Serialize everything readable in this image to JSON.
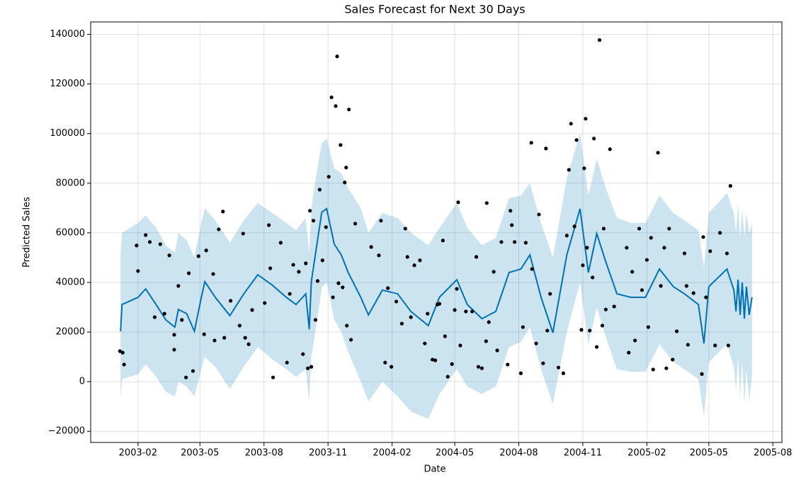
{
  "chart_data": {
    "type": "line",
    "title": "Sales Forecast for Next 30 Days",
    "xlabel": "Date",
    "ylabel": "Predicted Sales",
    "xlim": [
      "2002-11-25",
      "2005-08-14"
    ],
    "xticks": [
      {
        "value": "2003-02-01",
        "label": "2003-02"
      },
      {
        "value": "2003-05-01",
        "label": "2003-05"
      },
      {
        "value": "2003-08-01",
        "label": "2003-08"
      },
      {
        "value": "2003-11-01",
        "label": "2003-11"
      },
      {
        "value": "2004-02-01",
        "label": "2004-02"
      },
      {
        "value": "2004-05-01",
        "label": "2004-05"
      },
      {
        "value": "2004-08-01",
        "label": "2004-08"
      },
      {
        "value": "2004-11-01",
        "label": "2004-11"
      },
      {
        "value": "2005-02-01",
        "label": "2005-02"
      },
      {
        "value": "2005-05-01",
        "label": "2005-05"
      },
      {
        "value": "2005-08-01",
        "label": "2005-08"
      }
    ],
    "ylim": [
      -24500,
      145000
    ],
    "yticks": [
      {
        "value": -20000,
        "label": "−20000"
      },
      0,
      20000,
      40000,
      60000,
      80000,
      100000,
      120000,
      140000
    ],
    "grid": true,
    "x": [
      "2003-01-07",
      "2003-01-09",
      "2003-02-01",
      "2003-02-12",
      "2003-02-27",
      "2003-03-13",
      "2003-03-26",
      "2003-03-31",
      "2003-04-12",
      "2003-04-23",
      "2003-05-03",
      "2003-05-08",
      "2003-05-23",
      "2003-06-13",
      "2003-07-03",
      "2003-07-23",
      "2003-08-13",
      "2003-09-02",
      "2003-09-16",
      "2003-09-30",
      "2003-10-05",
      "2003-10-08",
      "2003-10-16",
      "2003-10-23",
      "2003-10-30",
      "2003-11-10",
      "2003-11-20",
      "2003-11-30",
      "2003-12-18",
      "2003-12-29",
      "2004-01-18",
      "2004-02-09",
      "2004-02-28",
      "2004-03-24",
      "2004-04-09",
      "2004-05-04",
      "2004-05-19",
      "2004-06-09",
      "2004-06-29",
      "2004-07-18",
      "2004-08-04",
      "2004-08-17",
      "2004-09-02",
      "2004-09-19",
      "2004-10-09",
      "2004-10-28",
      "2004-11-09",
      "2004-11-21",
      "2004-12-04",
      "2004-12-20",
      "2005-01-09",
      "2005-01-30",
      "2005-02-19",
      "2005-03-11",
      "2005-03-27",
      "2005-04-16",
      "2005-04-24",
      "2005-05-01",
      "2005-05-27",
      "2005-06-06",
      "2005-06-09",
      "2005-06-12",
      "2005-06-15",
      "2005-06-18",
      "2005-06-21",
      "2005-06-24",
      "2005-06-28",
      "2005-07-02"
    ],
    "series": [
      {
        "color": "#0072B2",
        "values": [
          20300,
          31100,
          34000,
          37400,
          31100,
          24900,
          22000,
          29100,
          27400,
          20300,
          34000,
          40300,
          34000,
          26600,
          35400,
          43100,
          38900,
          34000,
          31100,
          35400,
          21100,
          40300,
          55400,
          68300,
          69700,
          55400,
          51100,
          44000,
          34000,
          26900,
          36900,
          35400,
          28300,
          22600,
          34000,
          41100,
          31100,
          25400,
          28300,
          44000,
          45400,
          51100,
          34000,
          19700,
          51100,
          69700,
          44000,
          59700,
          48300,
          35400,
          34000,
          34000,
          45400,
          38300,
          35400,
          31100,
          15400,
          38300,
          45400,
          36900,
          28300,
          41100,
          26900,
          40000,
          25400,
          38300,
          26900,
          34000
        ]
      }
    ],
    "band": {
      "color": "#0072B2",
      "lower": [
        -7000,
        1000,
        3000,
        7000,
        2000,
        -4000,
        -6000,
        0,
        -2000,
        -6000,
        5000,
        10000,
        6000,
        -3000,
        6000,
        14000,
        9000,
        5000,
        2000,
        5000,
        -8000,
        10000,
        24000,
        38000,
        40000,
        25000,
        20000,
        12000,
        0,
        -8000,
        0,
        -6000,
        -12000,
        -15000,
        -5000,
        5000,
        -2000,
        -5000,
        -2000,
        14000,
        16000,
        22000,
        5000,
        -9000,
        20000,
        40000,
        15000,
        30000,
        18000,
        5000,
        4000,
        4000,
        15000,
        8000,
        5000,
        1000,
        -14000,
        8000,
        15000,
        6000,
        -4000,
        10000,
        -6000,
        8000,
        -9000,
        5000,
        -8000,
        2000
      ],
      "upper": [
        52000,
        60000,
        64000,
        67000,
        62000,
        55000,
        52000,
        60000,
        57000,
        50000,
        64000,
        70000,
        65000,
        56000,
        65000,
        72000,
        68000,
        64000,
        61000,
        66000,
        52000,
        70000,
        85000,
        96000,
        98000,
        86000,
        84000,
        78000,
        70000,
        60000,
        68000,
        66000,
        60000,
        55000,
        62000,
        72000,
        62000,
        55000,
        58000,
        74000,
        75000,
        80000,
        64000,
        50000,
        82000,
        100000,
        75000,
        90000,
        78000,
        66000,
        64000,
        64000,
        75000,
        68000,
        65000,
        61000,
        46000,
        68000,
        76000,
        68000,
        60000,
        72000,
        58000,
        70000,
        58000,
        68000,
        60000,
        64000
      ]
    },
    "scatter": {
      "color": "#000000",
      "x": [
        "2003-01-06",
        "2003-01-10",
        "2003-01-12",
        "2003-01-30",
        "2003-02-01",
        "2003-02-12",
        "2003-02-18",
        "2003-02-25",
        "2003-03-05",
        "2003-03-11",
        "2003-03-18",
        "2003-03-25",
        "2003-03-25",
        "2003-03-31",
        "2003-04-05",
        "2003-04-11",
        "2003-04-15",
        "2003-04-21",
        "2003-04-29",
        "2003-05-07",
        "2003-05-10",
        "2003-05-20",
        "2003-05-22",
        "2003-05-28",
        "2003-06-03",
        "2003-06-05",
        "2003-06-14",
        "2003-06-27",
        "2003-07-02",
        "2003-07-05",
        "2003-07-10",
        "2003-07-15",
        "2003-08-02",
        "2003-08-08",
        "2003-08-10",
        "2003-08-14",
        "2003-08-25",
        "2003-09-03",
        "2003-09-07",
        "2003-09-12",
        "2003-09-20",
        "2003-09-26",
        "2003-09-30",
        "2003-10-03",
        "2003-10-06",
        "2003-10-08",
        "2003-10-11",
        "2003-10-14",
        "2003-10-17",
        "2003-10-20",
        "2003-10-24",
        "2003-10-29",
        "2003-11-02",
        "2003-11-06",
        "2003-11-08",
        "2003-11-12",
        "2003-11-14",
        "2003-11-16",
        "2003-11-19",
        "2003-11-22",
        "2003-11-25",
        "2003-11-27",
        "2003-11-28",
        "2003-12-01",
        "2003-12-04",
        "2003-12-10",
        "2004-01-02",
        "2004-01-13",
        "2004-01-16",
        "2004-01-22",
        "2004-01-26",
        "2004-01-31",
        "2004-02-07",
        "2004-02-15",
        "2004-02-20",
        "2004-02-23",
        "2004-02-28",
        "2004-03-04",
        "2004-03-12",
        "2004-03-19",
        "2004-03-23",
        "2004-03-30",
        "2004-04-03",
        "2004-04-06",
        "2004-04-09",
        "2004-04-14",
        "2004-04-17",
        "2004-04-21",
        "2004-04-27",
        "2004-05-01",
        "2004-05-04",
        "2004-05-06",
        "2004-05-09",
        "2004-05-17",
        "2004-05-26",
        "2004-06-01",
        "2004-06-04",
        "2004-06-09",
        "2004-06-15",
        "2004-06-16",
        "2004-06-19",
        "2004-06-26",
        "2004-07-01",
        "2004-07-07",
        "2004-07-16",
        "2004-07-20",
        "2004-07-22",
        "2004-07-26",
        "2004-08-04",
        "2004-08-07",
        "2004-08-11",
        "2004-08-19",
        "2004-08-20",
        "2004-08-26",
        "2004-08-30",
        "2004-09-05",
        "2004-09-09",
        "2004-09-11",
        "2004-09-15",
        "2004-09-27",
        "2004-10-04",
        "2004-10-09",
        "2004-10-12",
        "2004-10-15",
        "2004-10-20",
        "2004-10-23",
        "2004-10-30",
        "2004-11-01",
        "2004-11-03",
        "2004-11-05",
        "2004-11-07",
        "2004-11-11",
        "2004-11-15",
        "2004-11-17",
        "2004-11-21",
        "2004-11-25",
        "2004-11-29",
        "2004-12-01",
        "2004-12-04",
        "2004-12-10",
        "2004-12-16",
        "2005-01-03",
        "2005-01-06",
        "2005-01-11",
        "2005-01-15",
        "2005-01-21",
        "2005-01-25",
        "2005-02-01",
        "2005-02-03",
        "2005-02-07",
        "2005-02-10",
        "2005-02-17",
        "2005-02-21",
        "2005-02-26",
        "2005-03-01",
        "2005-03-05",
        "2005-03-10",
        "2005-03-16",
        "2005-03-27",
        "2005-03-30",
        "2005-04-01",
        "2005-04-09",
        "2005-04-21",
        "2005-04-23",
        "2005-04-27",
        "2005-05-03",
        "2005-05-10",
        "2005-05-17",
        "2005-05-27",
        "2005-05-29",
        "2005-06-01"
      ],
      "values": [
        12300,
        11700,
        6900,
        54900,
        44600,
        59100,
        56300,
        26000,
        55400,
        27400,
        50900,
        18900,
        12900,
        38600,
        24900,
        1700,
        43700,
        4300,
        50600,
        19100,
        52900,
        43400,
        16600,
        61400,
        68600,
        17700,
        32600,
        22600,
        59700,
        17700,
        15100,
        28900,
        31700,
        63100,
        45700,
        1700,
        56000,
        7700,
        35400,
        47100,
        44300,
        11100,
        47700,
        5400,
        68900,
        6000,
        64900,
        24900,
        40600,
        77400,
        48900,
        62300,
        82600,
        114600,
        34000,
        111100,
        131100,
        39700,
        95400,
        38000,
        80300,
        86300,
        22600,
        109700,
        16900,
        63700,
        54300,
        50900,
        64900,
        7700,
        37700,
        6000,
        32300,
        23400,
        61700,
        50300,
        26000,
        46900,
        48900,
        15400,
        27400,
        8900,
        8600,
        31100,
        31400,
        56900,
        18300,
        2000,
        7100,
        28900,
        37400,
        72300,
        14600,
        28300,
        28300,
        50300,
        6000,
        5400,
        16300,
        72000,
        24000,
        44300,
        12600,
        56300,
        6900,
        68900,
        63100,
        56300,
        3400,
        22000,
        56000,
        96300,
        45400,
        15400,
        67400,
        7400,
        94000,
        20600,
        35400,
        5700,
        3400,
        58900,
        85400,
        104000,
        62600,
        97400,
        20900,
        46900,
        86000,
        106000,
        54000,
        20600,
        42000,
        98000,
        14000,
        137700,
        22600,
        61700,
        29100,
        93700,
        30300,
        54000,
        11700,
        44300,
        16600,
        61700,
        36900,
        49100,
        22000,
        58000,
        4900,
        92300,
        38600,
        54000,
        5400,
        61700,
        8900,
        20300,
        51700,
        38600,
        14900,
        35700,
        3100,
        58300,
        34000,
        52600,
        14600,
        60000,
        51700,
        14600,
        78900
      ]
    }
  }
}
